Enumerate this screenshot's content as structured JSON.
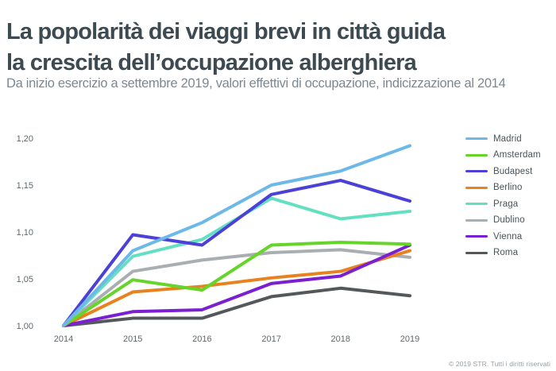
{
  "header": {
    "title_line1": "La popolarità dei viaggi brevi in città guida",
    "title_line2": "la crescita dell’occupazione alberghiera",
    "subtitle": "Da inizio esercizio a settembre 2019, valori effettivi di occupazione, indicizzazione al 2014"
  },
  "footer": {
    "copyright": "© 2019 STR. Tutti i diritti riservati"
  },
  "colors": {
    "title": "#3d4a52",
    "subtitle": "#7c8791",
    "axis_text": "#5f686d",
    "background": "#ffffff"
  },
  "chart_data": {
    "type": "line",
    "title": "",
    "xlabel": "",
    "ylabel": "",
    "grid": false,
    "legend_position": "right",
    "x": [
      2014,
      2015,
      2016,
      2017,
      2018,
      2019
    ],
    "x_tick_labels": [
      "2014",
      "2015",
      "2016",
      "2017",
      "2018",
      "2019"
    ],
    "ylim": [
      1.0,
      1.2
    ],
    "y_ticks": [
      {
        "value": 1.0,
        "label": "1,00"
      },
      {
        "value": 1.05,
        "label": "1,05"
      },
      {
        "value": 1.1,
        "label": "1,10"
      },
      {
        "value": 1.15,
        "label": "1,15"
      },
      {
        "value": 1.2,
        "label": "1,20"
      }
    ],
    "series": [
      {
        "name": "Madrid",
        "color": "#6CB9E8",
        "values": [
          1.0,
          1.08,
          1.11,
          1.15,
          1.165,
          1.192
        ]
      },
      {
        "name": "Amsterdam",
        "color": "#66D42A",
        "values": [
          1.0,
          1.049,
          1.038,
          1.086,
          1.089,
          1.087
        ]
      },
      {
        "name": "Budapest",
        "color": "#4B41D6",
        "values": [
          1.0,
          1.097,
          1.086,
          1.14,
          1.155,
          1.133
        ]
      },
      {
        "name": "Berlino",
        "color": "#E8821F",
        "values": [
          1.0,
          1.036,
          1.042,
          1.051,
          1.058,
          1.08
        ]
      },
      {
        "name": "Praga",
        "color": "#63E0C2",
        "values": [
          1.0,
          1.074,
          1.092,
          1.136,
          1.114,
          1.122
        ]
      },
      {
        "name": "Dublino",
        "color": "#A9AEB3",
        "values": [
          1.0,
          1.058,
          1.07,
          1.078,
          1.081,
          1.073
        ]
      },
      {
        "name": "Vienna",
        "color": "#7B1FD3",
        "values": [
          1.0,
          1.015,
          1.017,
          1.045,
          1.053,
          1.086
        ]
      },
      {
        "name": "Roma",
        "color": "#54585B",
        "values": [
          1.0,
          1.008,
          1.008,
          1.031,
          1.04,
          1.032
        ]
      }
    ],
    "draw_order": [
      "Roma",
      "Dublino",
      "Praga",
      "Berlino",
      "Vienna",
      "Amsterdam",
      "Budapest",
      "Madrid"
    ]
  }
}
